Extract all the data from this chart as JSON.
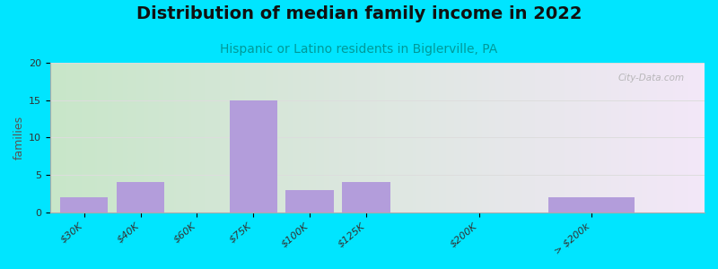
{
  "title": "Distribution of median family income in 2022",
  "subtitle": "Hispanic or Latino residents in Biglerville, PA",
  "ylabel": "families",
  "categories": [
    "$30K",
    "$40K",
    "$60K",
    "$75K",
    "$100K",
    "$125K",
    "$200K",
    "> $200k"
  ],
  "values": [
    2,
    4,
    0,
    15,
    3,
    4,
    0,
    2
  ],
  "bar_positions": [
    0,
    1,
    2,
    3,
    4,
    5,
    7,
    9
  ],
  "bar_widths": [
    1,
    1,
    1,
    1,
    1,
    1,
    1,
    1.8
  ],
  "xlim": [
    -0.6,
    11.0
  ],
  "bar_color": "#b39ddb",
  "background_outer": "#00e5ff",
  "grad_left": "#c8e6c9",
  "grad_right": "#f3e8f8",
  "ylim": [
    0,
    20
  ],
  "yticks": [
    0,
    5,
    10,
    15,
    20
  ],
  "grid_color": "#dddddd",
  "title_fontsize": 14,
  "subtitle_fontsize": 10,
  "ylabel_fontsize": 9,
  "tick_fontsize": 8,
  "watermark": "City-Data.com"
}
